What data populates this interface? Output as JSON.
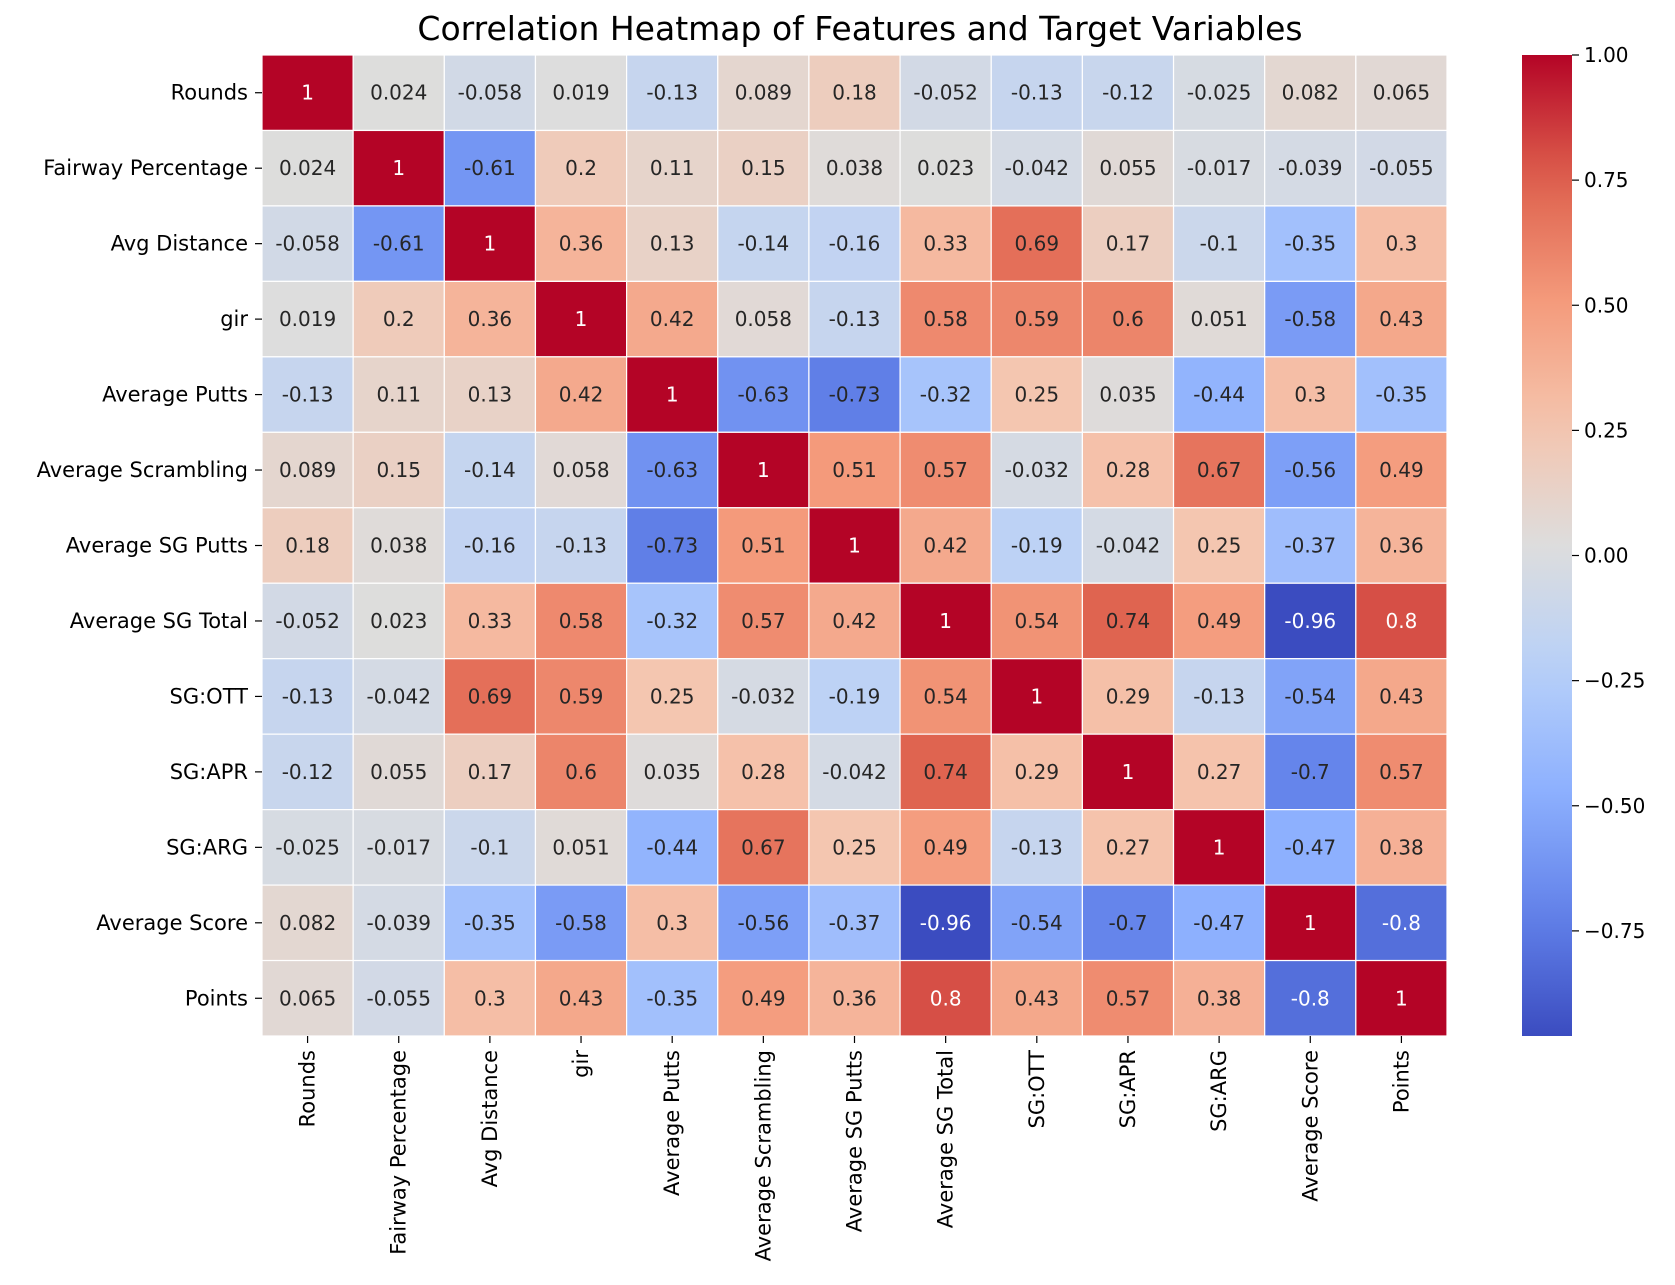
{
  "chart_data": {
    "type": "heatmap",
    "title": "Correlation Heatmap of Features and Target Variables",
    "xlabel": "",
    "ylabel": "",
    "colormap": "coolwarm",
    "labels": [
      "Rounds",
      "Fairway Percentage",
      "Avg Distance",
      "gir",
      "Average Putts",
      "Average Scrambling",
      "Average SG Putts",
      "Average SG Total",
      "SG:OTT",
      "SG:APR",
      "SG:ARG",
      "Average Score",
      "Points"
    ],
    "values": [
      [
        1,
        0.024,
        -0.058,
        0.019,
        -0.13,
        0.089,
        0.18,
        -0.052,
        -0.13,
        -0.12,
        -0.025,
        0.082,
        0.065
      ],
      [
        0.024,
        1,
        -0.61,
        0.2,
        0.11,
        0.15,
        0.038,
        0.023,
        -0.042,
        0.055,
        -0.017,
        -0.039,
        -0.055
      ],
      [
        -0.058,
        -0.61,
        1,
        0.36,
        0.13,
        -0.14,
        -0.16,
        0.33,
        0.69,
        0.17,
        -0.1,
        -0.35,
        0.3
      ],
      [
        0.019,
        0.2,
        0.36,
        1,
        0.42,
        0.058,
        -0.13,
        0.58,
        0.59,
        0.6,
        0.051,
        -0.58,
        0.43
      ],
      [
        -0.13,
        0.11,
        0.13,
        0.42,
        1,
        -0.63,
        -0.73,
        -0.32,
        0.25,
        0.035,
        -0.44,
        0.3,
        -0.35
      ],
      [
        0.089,
        0.15,
        -0.14,
        0.058,
        -0.63,
        1,
        0.51,
        0.57,
        -0.032,
        0.28,
        0.67,
        -0.56,
        0.49
      ],
      [
        0.18,
        0.038,
        -0.16,
        -0.13,
        -0.73,
        0.51,
        1,
        0.42,
        -0.19,
        -0.042,
        0.25,
        -0.37,
        0.36
      ],
      [
        -0.052,
        0.023,
        0.33,
        0.58,
        -0.32,
        0.57,
        0.42,
        1,
        0.54,
        0.74,
        0.49,
        -0.96,
        0.8
      ],
      [
        -0.13,
        -0.042,
        0.69,
        0.59,
        0.25,
        -0.032,
        -0.19,
        0.54,
        1,
        0.29,
        -0.13,
        -0.54,
        0.43
      ],
      [
        -0.12,
        0.055,
        0.17,
        0.6,
        0.035,
        0.28,
        -0.042,
        0.74,
        0.29,
        1,
        0.27,
        -0.7,
        0.57
      ],
      [
        -0.025,
        -0.017,
        -0.1,
        0.051,
        -0.44,
        0.67,
        0.25,
        0.49,
        -0.13,
        0.27,
        1,
        -0.47,
        0.38
      ],
      [
        0.082,
        -0.039,
        -0.35,
        -0.58,
        0.3,
        -0.56,
        -0.37,
        -0.96,
        -0.54,
        -0.7,
        -0.47,
        1,
        -0.8
      ],
      [
        0.065,
        -0.055,
        0.3,
        0.43,
        -0.35,
        0.49,
        0.36,
        0.8,
        0.43,
        0.57,
        0.38,
        -0.8,
        1
      ]
    ],
    "colorbar": {
      "vmin": -0.96,
      "vmax": 1.0,
      "ticks": [
        1.0,
        0.75,
        0.5,
        0.25,
        0.0,
        -0.25,
        -0.5,
        -0.75
      ],
      "tick_labels": [
        "1.00",
        "0.75",
        "0.50",
        "0.25",
        "0.00",
        "−0.25",
        "−0.50",
        "−0.75"
      ]
    }
  }
}
